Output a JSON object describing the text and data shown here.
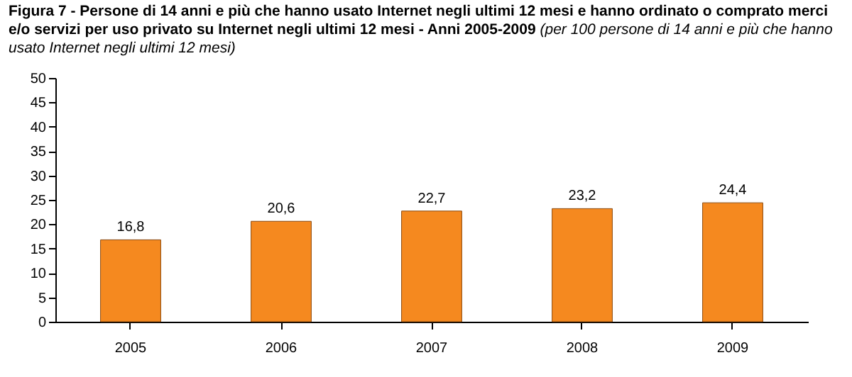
{
  "chart_data": {
    "type": "bar",
    "title": "Figura 7 - Persone di 14 anni e più che hanno usato Internet negli ultimi 12 mesi e hanno ordinato o comprato merci e/o servizi per uso privato su Internet negli ultimi 12 mesi - Anni 2005-2009",
    "subtitle": "(per 100 persone di 14 anni e più che hanno usato Internet negli ultimi 12 mesi)",
    "categories": [
      "2005",
      "2006",
      "2007",
      "2008",
      "2009"
    ],
    "values": [
      16.8,
      20.6,
      22.7,
      23.2,
      24.4
    ],
    "value_labels": [
      "16,8",
      "20,6",
      "22,7",
      "23,2",
      "24,4"
    ],
    "color": "#f5891f",
    "ylim": [
      0,
      50
    ],
    "yticks": [
      0,
      5,
      10,
      15,
      20,
      25,
      30,
      35,
      40,
      45,
      50
    ]
  }
}
